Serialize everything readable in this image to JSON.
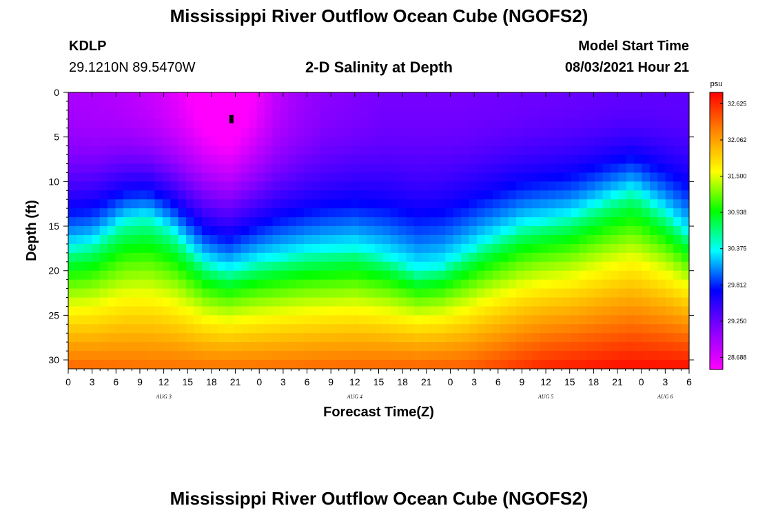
{
  "header": {
    "title": "Mississippi River Outflow Ocean Cube (NGOFS2)",
    "station": "KDLP",
    "coordinates": "29.1210N  89.5470W",
    "subtitle": "2-D Salinity at Depth",
    "model_start_label": "Model Start Time",
    "model_start_value": "08/03/2021 Hour 21"
  },
  "footer": {
    "title": "Mississippi River Outflow Ocean Cube (NGOFS2)"
  },
  "chart_data": {
    "type": "heatmap",
    "title": "2-D Salinity at Depth",
    "xlabel": "Forecast Time(Z)",
    "ylabel": "Depth (ft)",
    "x_ticks": [
      "0",
      "3",
      "6",
      "9",
      "12",
      "15",
      "18",
      "21",
      "0",
      "3",
      "6",
      "9",
      "12",
      "15",
      "18",
      "21",
      "0",
      "3",
      "6",
      "9",
      "12",
      "15",
      "18",
      "21",
      "0",
      "3",
      "6"
    ],
    "x_range_hours": [
      0,
      78
    ],
    "date_labels": [
      {
        "label": "AUG 3",
        "hour": 12.0
      },
      {
        "label": "AUG 4",
        "hour": 36.0
      },
      {
        "label": "AUG 5",
        "hour": 60.0
      },
      {
        "label": "AUG 6",
        "hour": 75.0
      }
    ],
    "y_ticks": [
      0,
      5,
      10,
      15,
      20,
      25,
      30
    ],
    "ylim": [
      31,
      0
    ],
    "colorbar": {
      "unit": "psu",
      "range": [
        28.5,
        32.8
      ],
      "ticks": [
        "32.625",
        "32.062",
        "31.500",
        "30.938",
        "30.375",
        "29.812",
        "29.250",
        "28.688"
      ],
      "colors": [
        "#ff00ff",
        "#8800ff",
        "#0000ff",
        "#00ffff",
        "#00ff00",
        "#ffff00",
        "#ff8800",
        "#ff0000"
      ]
    },
    "marker": {
      "hour": 20.5,
      "depth": 3
    },
    "nx": 79,
    "ny": 31,
    "interface_depth_ft": [
      {
        "hour": 0,
        "depth": 17.5
      },
      {
        "hour": 3,
        "depth": 17.0
      },
      {
        "hour": 7,
        "depth": 14.5
      },
      {
        "hour": 10,
        "depth": 14.0
      },
      {
        "hour": 13,
        "depth": 15.5
      },
      {
        "hour": 17,
        "depth": 19.0
      },
      {
        "hour": 20,
        "depth": 20.0
      },
      {
        "hour": 24,
        "depth": 19.0
      },
      {
        "hour": 30,
        "depth": 18.0
      },
      {
        "hour": 36,
        "depth": 17.5
      },
      {
        "hour": 40,
        "depth": 18.5
      },
      {
        "hour": 44,
        "depth": 20.0
      },
      {
        "hour": 47,
        "depth": 19.5
      },
      {
        "hour": 52,
        "depth": 17.0
      },
      {
        "hour": 57,
        "depth": 15.0
      },
      {
        "hour": 63,
        "depth": 14.0
      },
      {
        "hour": 68,
        "depth": 12.0
      },
      {
        "hour": 71,
        "depth": 11.0
      },
      {
        "hour": 75,
        "depth": 13.5
      },
      {
        "hour": 78,
        "depth": 16.0
      }
    ],
    "surface_salinity_psu": [
      {
        "hour": 0,
        "value": 28.95
      },
      {
        "hour": 6,
        "value": 28.9
      },
      {
        "hour": 14,
        "value": 28.75
      },
      {
        "hour": 20,
        "value": 28.6
      },
      {
        "hour": 26,
        "value": 28.95
      },
      {
        "hour": 32,
        "value": 29.1
      },
      {
        "hour": 40,
        "value": 29.2
      },
      {
        "hour": 50,
        "value": 29.2
      },
      {
        "hour": 60,
        "value": 29.25
      },
      {
        "hour": 70,
        "value": 29.3
      },
      {
        "hour": 78,
        "value": 29.3
      }
    ],
    "bottom_salinity_psu": [
      {
        "hour": 0,
        "value": 32.35
      },
      {
        "hour": 10,
        "value": 32.3
      },
      {
        "hour": 20,
        "value": 32.3
      },
      {
        "hour": 36,
        "value": 32.35
      },
      {
        "hour": 50,
        "value": 32.4
      },
      {
        "hour": 60,
        "value": 32.65
      },
      {
        "hour": 70,
        "value": 32.75
      },
      {
        "hour": 78,
        "value": 32.75
      }
    ]
  }
}
